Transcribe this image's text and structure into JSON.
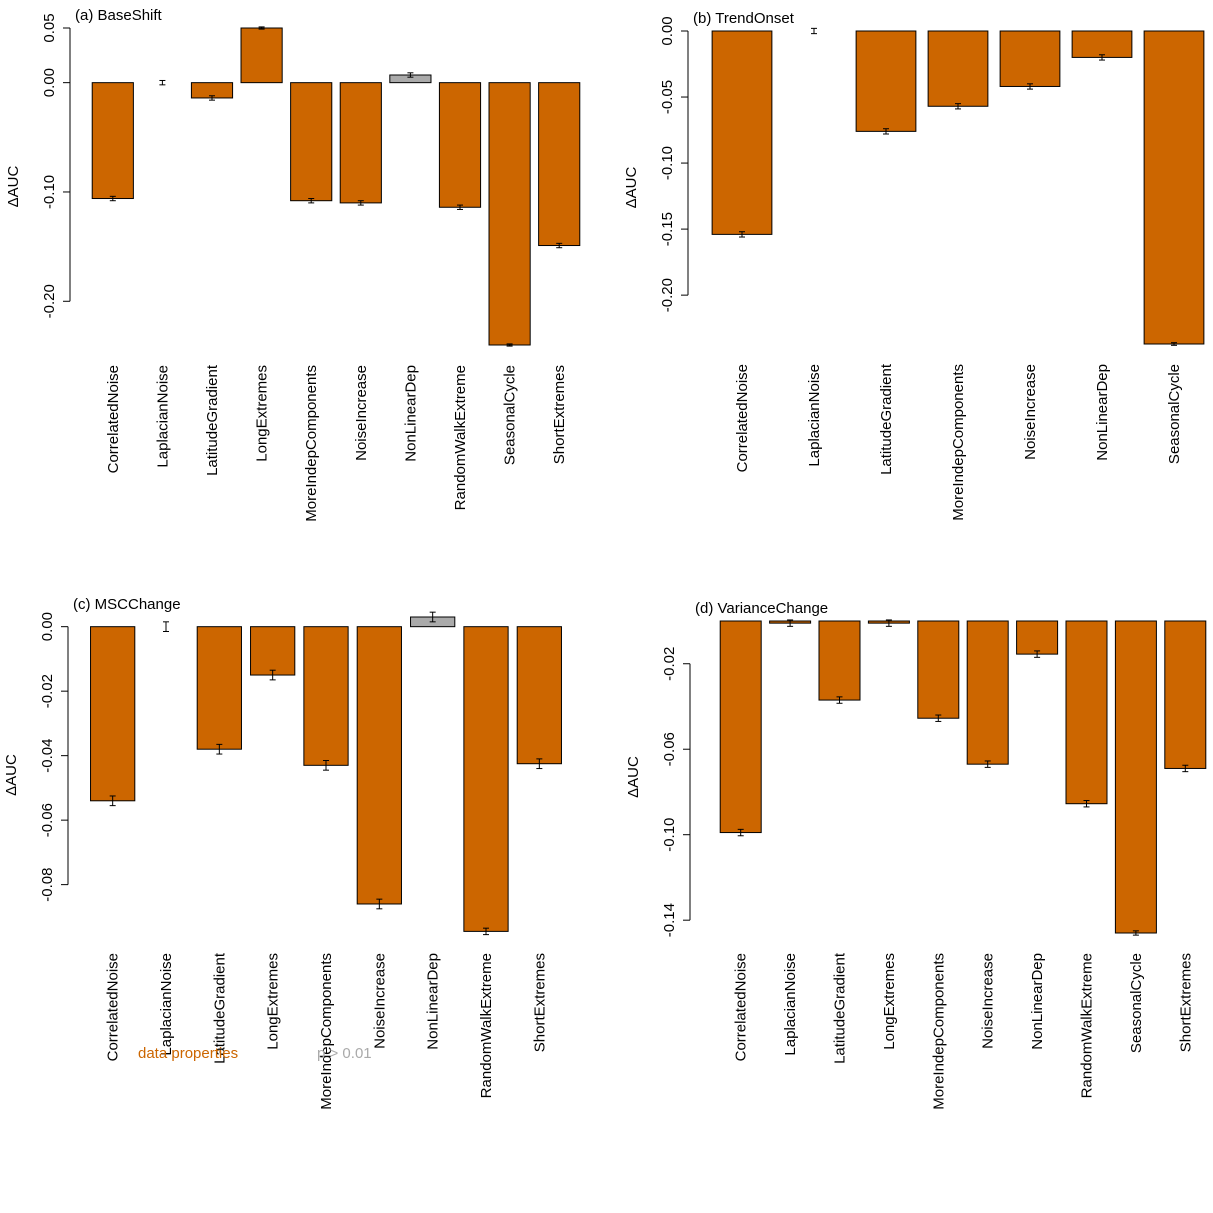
{
  "chart_data": [
    {
      "type": "bar",
      "title": "(a) BaseShift",
      "ylabel": "ΔAUC",
      "categories": [
        "CorrelatedNoise",
        "LaplacianNoise",
        "LatitudeGradient",
        "LongExtremes",
        "MoreIndepComponents",
        "NoiseIncrease",
        "NonLinearDep",
        "RandomWalkExtreme",
        "SeasonalCycle",
        "ShortExtremes"
      ],
      "values": [
        -0.106,
        0.0,
        -0.014,
        0.05,
        -0.108,
        -0.11,
        0.007,
        -0.114,
        -0.24,
        -0.149
      ],
      "errors": [
        0.002,
        0.002,
        0.002,
        0.001,
        0.002,
        0.002,
        0.002,
        0.002,
        0.001,
        0.002
      ],
      "colors": [
        "#cc6600",
        "#cc6600",
        "#cc6600",
        "#cc6600",
        "#cc6600",
        "#cc6600",
        "#aaaaaa",
        "#cc6600",
        "#cc6600",
        "#cc6600"
      ],
      "ylim": [
        -0.24,
        0.05
      ],
      "yticks": [
        {
          "value": -0.2,
          "label": "-0.20"
        },
        {
          "value": -0.1,
          "label": "-0.10"
        },
        {
          "value": 0,
          "label": "0.00"
        },
        0.05
      ]
    },
    {
      "type": "bar",
      "title": "(b) TrendOnset",
      "ylabel": "ΔAUC",
      "categories": [
        "CorrelatedNoise",
        "LaplacianNoise",
        "LatitudeGradient",
        "MoreIndepComponents",
        "NoiseIncrease",
        "NonLinearDep",
        "SeasonalCycle"
      ],
      "values": [
        -0.154,
        0.0,
        -0.076,
        -0.057,
        -0.042,
        -0.02,
        -0.237
      ],
      "errors": [
        0.002,
        0.002,
        0.002,
        0.002,
        0.002,
        0.002,
        0.001
      ],
      "colors": [
        "#cc6600",
        "#cc6600",
        "#cc6600",
        "#cc6600",
        "#cc6600",
        "#cc6600",
        "#cc6600"
      ],
      "ylim": [
        -0.237,
        0
      ],
      "yticks": [
        {
          "value": -0.2,
          "label": "-0.20"
        },
        -0.15,
        {
          "value": -0.1,
          "label": "-0.10"
        },
        -0.05,
        {
          "value": 0,
          "label": "0.00"
        }
      ]
    },
    {
      "type": "bar",
      "title": "(c) MSCChange",
      "ylabel": "ΔAUC",
      "categories": [
        "CorrelatedNoise",
        "LaplacianNoise",
        "LatitudeGradient",
        "LongExtremes",
        "MoreIndepComponents",
        "NoiseIncrease",
        "NonLinearDep",
        "RandomWalkExtreme",
        "ShortExtremes"
      ],
      "values": [
        -0.054,
        0.0,
        -0.038,
        -0.015,
        -0.043,
        -0.086,
        0.003,
        -0.0945,
        -0.0425
      ],
      "errors": [
        0.0015,
        0.0015,
        0.0015,
        0.0015,
        0.0015,
        0.0015,
        0.0015,
        0.001,
        0.0015
      ],
      "colors": [
        "#cc6600",
        "#cc6600",
        "#cc6600",
        "#cc6600",
        "#cc6600",
        "#cc6600",
        "#aaaaaa",
        "#cc6600",
        "#cc6600"
      ],
      "ylim": [
        -0.095,
        0.003
      ],
      "yticks": [
        -0.08,
        -0.06,
        -0.04,
        -0.02,
        {
          "value": 0,
          "label": "0.00"
        }
      ]
    },
    {
      "type": "bar",
      "title": "(d) VarianceChange",
      "ylabel": "ΔAUC",
      "categories": [
        "CorrelatedNoise",
        "LaplacianNoise",
        "LatitudeGradient",
        "LongExtremes",
        "MoreIndepComponents",
        "NoiseIncrease",
        "NonLinearDep",
        "RandomWalkExtreme",
        "SeasonalCycle",
        "ShortExtremes"
      ],
      "values": [
        -0.099,
        -0.001,
        -0.037,
        -0.001,
        -0.0455,
        -0.067,
        -0.0155,
        -0.0855,
        -0.146,
        -0.069
      ],
      "errors": [
        0.0015,
        0.0015,
        0.0015,
        0.0015,
        0.0015,
        0.0015,
        0.0015,
        0.0015,
        0.001,
        0.0015
      ],
      "colors": [
        "#cc6600",
        "#cc6600",
        "#cc6600",
        "#cc6600",
        "#cc6600",
        "#cc6600",
        "#cc6600",
        "#cc6600",
        "#cc6600",
        "#cc6600"
      ],
      "ylim": [
        -0.146,
        0
      ],
      "yticks": [
        -0.14,
        {
          "value": -0.1,
          "label": "-0.10"
        },
        -0.06,
        -0.02
      ]
    }
  ],
  "legend": [
    {
      "name": "data properties",
      "color": "#cc6600"
    },
    {
      "name": "p > 0.01",
      "color": "#aaaaaa"
    }
  ]
}
